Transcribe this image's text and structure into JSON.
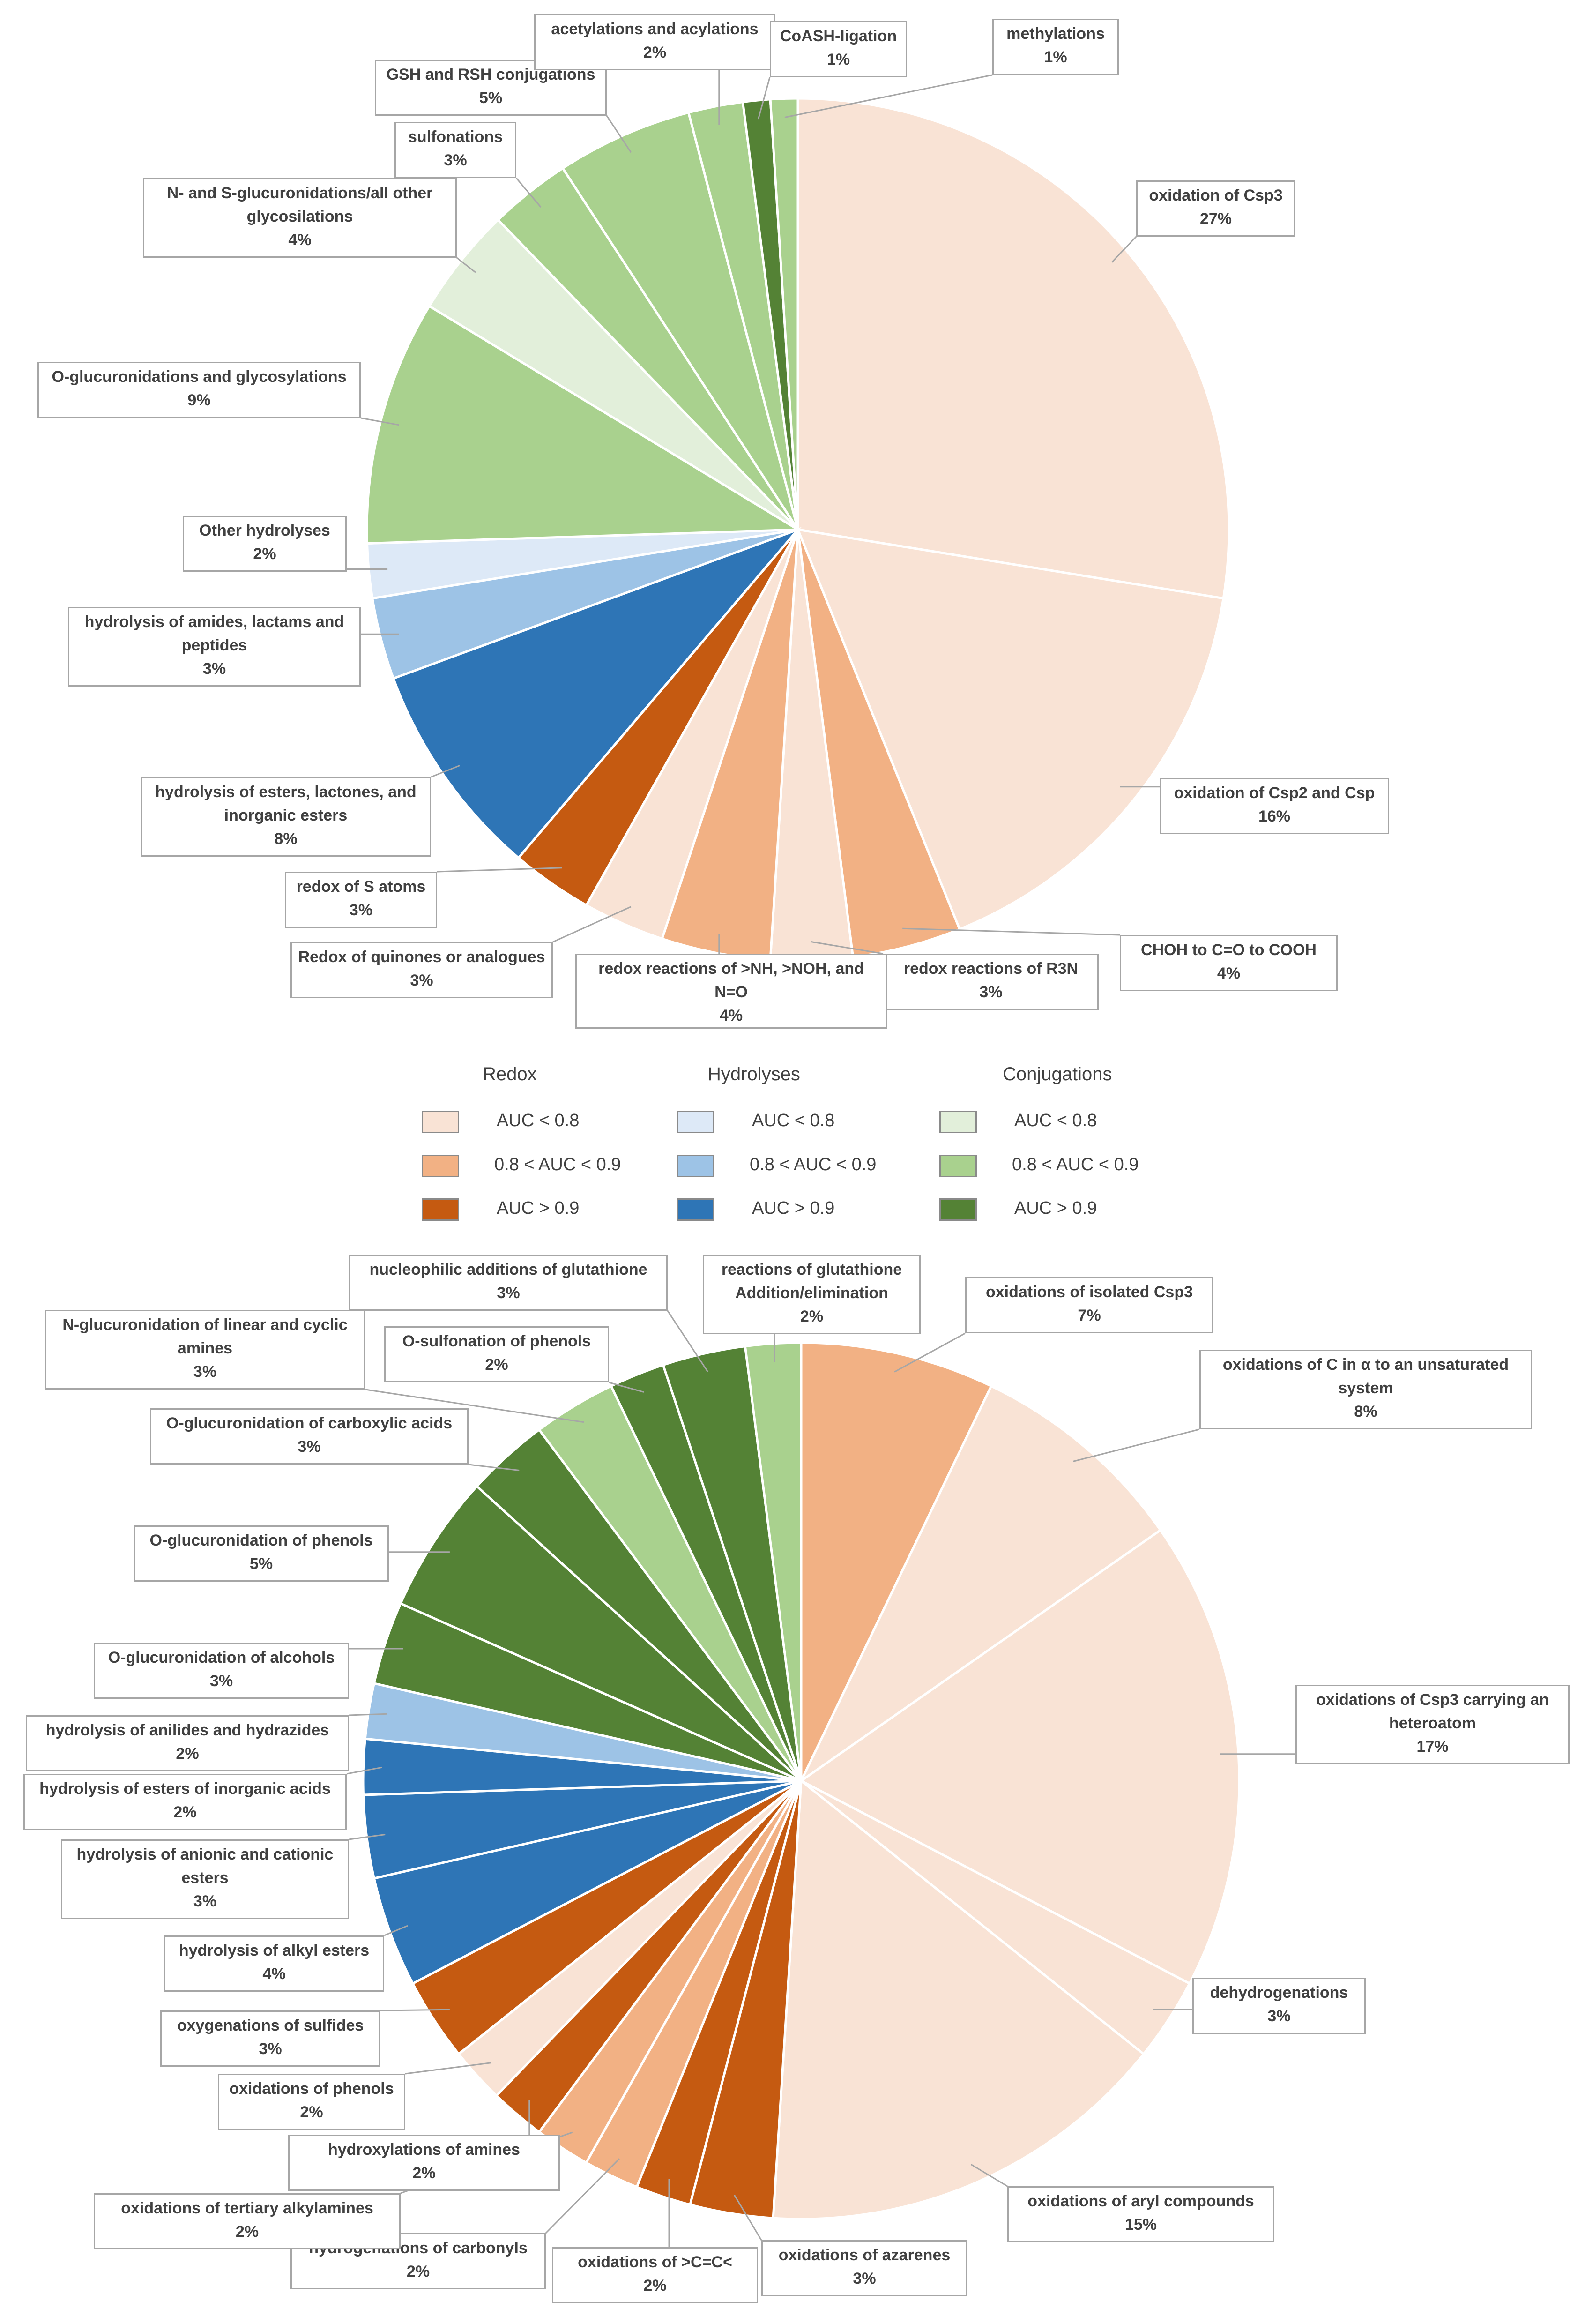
{
  "colors": {
    "redox_low": "#f9e3d5",
    "redox_mid": "#f2b184",
    "redox_high": "#c55a11",
    "hydro_low": "#dde9f7",
    "hydro_mid": "#9dc3e6",
    "hydro_high": "#2e75b6",
    "conj_low": "#e2efda",
    "conj_mid": "#a9d18e",
    "conj_high": "#548235"
  },
  "legend": {
    "groups": [
      {
        "title": "Redox",
        "items": [
          {
            "label": "AUC < 0.8",
            "color": "redox_low"
          },
          {
            "label": "0.8 < AUC < 0.9",
            "color": "redox_mid"
          },
          {
            "label": "AUC > 0.9",
            "color": "redox_high"
          }
        ]
      },
      {
        "title": "Hydrolyses",
        "items": [
          {
            "label": "AUC < 0.8",
            "color": "hydro_low"
          },
          {
            "label": "0.8 < AUC < 0.9",
            "color": "hydro_mid"
          },
          {
            "label": "AUC > 0.9",
            "color": "hydro_high"
          }
        ]
      },
      {
        "title": "Conjugations",
        "items": [
          {
            "label": "AUC < 0.8",
            "color": "conj_low"
          },
          {
            "label": "0.8 < AUC < 0.9",
            "color": "conj_mid"
          },
          {
            "label": "AUC > 0.9",
            "color": "conj_high"
          }
        ]
      }
    ]
  },
  "chart_data": [
    {
      "type": "pie",
      "title": "",
      "start": "12 o'clock, clockwise",
      "slices": [
        {
          "label": "oxidation of Csp3",
          "lines": [
            "oxidation of Csp3"
          ],
          "value": 27,
          "pct": "27%",
          "color": "redox_low"
        },
        {
          "label": "oxidation of Csp2 and Csp",
          "lines": [
            "oxidation of Csp2 and Csp"
          ],
          "value": 16,
          "pct": "16%",
          "color": "redox_low"
        },
        {
          "label": "CHOH to C=O to COOH",
          "lines": [
            "CHOH to C=O to COOH"
          ],
          "value": 4,
          "pct": "4%",
          "color": "redox_mid"
        },
        {
          "label": "redox reactions of R3N",
          "lines": [
            "redox reactions of R3N"
          ],
          "value": 3,
          "pct": "3%",
          "color": "redox_low"
        },
        {
          "label": "redox reactions of >NH, >NOH, and N=O",
          "lines": [
            "redox reactions of >NH, >NOH, and",
            "N=O"
          ],
          "value": 4,
          "pct": "4%",
          "color": "redox_mid"
        },
        {
          "label": "Redox of quinones or analogues",
          "lines": [
            "Redox of quinones or analogues"
          ],
          "value": 3,
          "pct": "3%",
          "color": "redox_low"
        },
        {
          "label": "redox of S atoms",
          "lines": [
            "redox of S atoms"
          ],
          "value": 3,
          "pct": "3%",
          "color": "redox_high"
        },
        {
          "label": "hydrolysis of esters, lactones, and inorganic esters",
          "lines": [
            "hydrolysis of esters, lactones, and",
            "inorganic esters"
          ],
          "value": 8,
          "pct": "8%",
          "color": "hydro_high"
        },
        {
          "label": "hydrolysis of amides, lactams and peptides",
          "lines": [
            "hydrolysis of amides, lactams and",
            "peptides"
          ],
          "value": 3,
          "pct": "3%",
          "color": "hydro_mid"
        },
        {
          "label": "Other hydrolyses",
          "lines": [
            "Other hydrolyses"
          ],
          "value": 2,
          "pct": "2%",
          "color": "hydro_low"
        },
        {
          "label": "O-glucuronidations and glycosylations",
          "lines": [
            "O-glucuronidations and glycosylations"
          ],
          "value": 9,
          "pct": "9%",
          "color": "conj_mid"
        },
        {
          "label": "N- and S-glucuronidations/all other glycosilations",
          "lines": [
            "N- and S-glucuronidations/all other",
            "glycosilations"
          ],
          "value": 4,
          "pct": "4%",
          "color": "conj_low"
        },
        {
          "label": "sulfonations",
          "lines": [
            "sulfonations"
          ],
          "value": 3,
          "pct": "3%",
          "color": "conj_mid"
        },
        {
          "label": "GSH and RSH conjugations",
          "lines": [
            "GSH and RSH conjugations"
          ],
          "value": 5,
          "pct": "5%",
          "color": "conj_mid"
        },
        {
          "label": "acetylations and acylations",
          "lines": [
            "acetylations and acylations"
          ],
          "value": 2,
          "pct": "2%",
          "color": "conj_mid"
        },
        {
          "label": "CoASH-ligation",
          "lines": [
            "CoASH-ligation"
          ],
          "value": 1,
          "pct": "1%",
          "color": "conj_high"
        },
        {
          "label": "methylations",
          "lines": [
            "methylations"
          ],
          "value": 1,
          "pct": "1%",
          "color": "conj_mid"
        }
      ]
    },
    {
      "type": "pie",
      "title": "",
      "start": "12 o'clock, clockwise",
      "slices": [
        {
          "label": "oxidations of isolated Csp3",
          "lines": [
            "oxidations of isolated Csp3"
          ],
          "value": 7,
          "pct": "7%",
          "color": "redox_mid"
        },
        {
          "label": "oxidations of C in α to an unsaturated system",
          "lines": [
            "oxidations of C in α to an unsaturated",
            "system"
          ],
          "value": 8,
          "pct": "8%",
          "color": "redox_low"
        },
        {
          "label": "oxidations of Csp3 carrying an heteroatom",
          "lines": [
            "oxidations of Csp3 carrying an",
            "heteroatom"
          ],
          "value": 17,
          "pct": "17%",
          "color": "redox_low"
        },
        {
          "label": "dehydrogenations",
          "lines": [
            "dehydrogenations"
          ],
          "value": 3,
          "pct": "3%",
          "color": "redox_low"
        },
        {
          "label": "oxidations of aryl compounds",
          "lines": [
            "oxidations of aryl compounds"
          ],
          "value": 15,
          "pct": "15%",
          "color": "redox_low"
        },
        {
          "label": "oxidations of azarenes",
          "lines": [
            "oxidations of azarenes"
          ],
          "value": 3,
          "pct": "3%",
          "color": "redox_high"
        },
        {
          "label": "oxidations of >C=C<",
          "lines": [
            "oxidations of >C=C<"
          ],
          "value": 2,
          "pct": "2%",
          "color": "redox_high"
        },
        {
          "label": "hydrogenations of carbonyls",
          "lines": [
            "hydrogenations of carbonyls"
          ],
          "value": 2,
          "pct": "2%",
          "color": "redox_mid"
        },
        {
          "label": "oxidations of tertiary alkylamines",
          "lines": [
            "oxidations of tertiary alkylamines"
          ],
          "value": 2,
          "pct": "2%",
          "color": "redox_mid"
        },
        {
          "label": "hydroxylations of amines",
          "lines": [
            "hydroxylations of amines"
          ],
          "value": 2,
          "pct": "2%",
          "color": "redox_high"
        },
        {
          "label": "oxidations of phenols",
          "lines": [
            "oxidations of phenols"
          ],
          "value": 2,
          "pct": "2%",
          "color": "redox_low"
        },
        {
          "label": "oxygenations of sulfides",
          "lines": [
            "oxygenations of sulfides"
          ],
          "value": 3,
          "pct": "3%",
          "color": "redox_high"
        },
        {
          "label": "hydrolysis of alkyl esters",
          "lines": [
            "hydrolysis of alkyl esters"
          ],
          "value": 4,
          "pct": "4%",
          "color": "hydro_high"
        },
        {
          "label": "hydrolysis of anionic and cationic esters",
          "lines": [
            "hydrolysis of anionic and cationic",
            "esters"
          ],
          "value": 3,
          "pct": "3%",
          "color": "hydro_high"
        },
        {
          "label": "hydrolysis of esters of inorganic acids",
          "lines": [
            "hydrolysis of esters of inorganic acids"
          ],
          "value": 2,
          "pct": "2%",
          "color": "hydro_high"
        },
        {
          "label": "hydrolysis of anilides and hydrazides",
          "lines": [
            "hydrolysis of anilides and hydrazides"
          ],
          "value": 2,
          "pct": "2%",
          "color": "hydro_mid"
        },
        {
          "label": "O-glucuronidation of alcohols",
          "lines": [
            "O-glucuronidation of alcohols"
          ],
          "value": 3,
          "pct": "3%",
          "color": "conj_high"
        },
        {
          "label": "O-glucuronidation of phenols",
          "lines": [
            "O-glucuronidation of phenols"
          ],
          "value": 5,
          "pct": "5%",
          "color": "conj_high"
        },
        {
          "label": "O-glucuronidation of carboxylic acids",
          "lines": [
            "O-glucuronidation of carboxylic acids"
          ],
          "value": 3,
          "pct": "3%",
          "color": "conj_high"
        },
        {
          "label": "N-glucuronidation of linear and cyclic amines",
          "lines": [
            "N-glucuronidation of linear and cyclic",
            "amines"
          ],
          "value": 3,
          "pct": "3%",
          "color": "conj_mid"
        },
        {
          "label": "O-sulfonation of phenols",
          "lines": [
            "O-sulfonation of phenols"
          ],
          "value": 2,
          "pct": "2%",
          "color": "conj_high"
        },
        {
          "label": "nucleophilic additions of glutathione",
          "lines": [
            "nucleophilic additions of glutathione"
          ],
          "value": 3,
          "pct": "3%",
          "color": "conj_high"
        },
        {
          "label": "reactions of glutathione Addition/elimination",
          "lines": [
            "reactions of glutathione",
            "Addition/elimination"
          ],
          "value": 2,
          "pct": "2%",
          "color": "conj_mid"
        }
      ]
    }
  ]
}
